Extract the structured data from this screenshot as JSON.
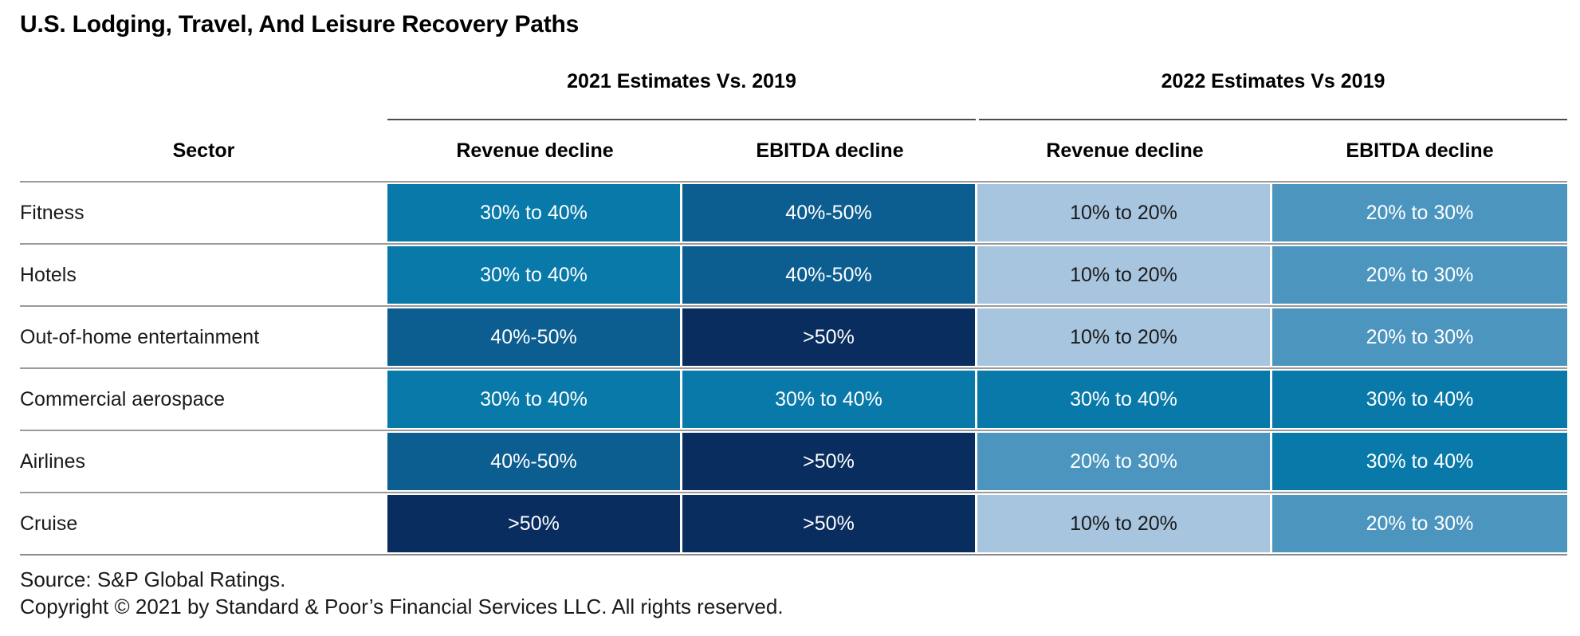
{
  "title": "U.S. Lodging, Travel, And Leisure Recovery Paths",
  "chart_data": {
    "type": "table",
    "title": "U.S. Lodging, Travel, And Leisure Recovery Paths",
    "group_headers": [
      "2021 Estimates Vs. 2019",
      "2022 Estimates Vs 2019"
    ],
    "sector_header": "Sector",
    "column_headers": [
      "Revenue decline",
      "EBITDA decline",
      "Revenue decline",
      "EBITDA decline"
    ],
    "rows": [
      {
        "sector": "Fitness",
        "values": [
          "30% to 40%",
          "40%-50%",
          "10% to 20%",
          "20% to 30%"
        ]
      },
      {
        "sector": "Hotels",
        "values": [
          "30% to 40%",
          "40%-50%",
          "10% to 20%",
          "20% to 30%"
        ]
      },
      {
        "sector": "Out-of-home entertainment",
        "values": [
          "40%-50%",
          ">50%",
          "10% to 20%",
          "20% to 30%"
        ]
      },
      {
        "sector": "Commercial aerospace",
        "values": [
          "30% to 40%",
          "30% to 40%",
          "30% to 40%",
          "30% to 40%"
        ]
      },
      {
        "sector": "Airlines",
        "values": [
          "40%-50%",
          ">50%",
          "20% to 30%",
          "30% to 40%"
        ]
      },
      {
        "sector": "Cruise",
        "values": [
          ">50%",
          ">50%",
          "10% to 20%",
          "20% to 30%"
        ]
      }
    ],
    "color_scale": {
      "10% to 20%": {
        "bg": "#a8c5df",
        "fg": "#1a1a1a"
      },
      "20% to 30%": {
        "bg": "#4c95bf",
        "fg": "#ffffff"
      },
      "30% to 40%": {
        "bg": "#0879a9",
        "fg": "#ffffff"
      },
      "40%-50%": {
        "bg": "#0c5d90",
        "fg": "#ffffff"
      },
      ">50%": {
        "bg": "#092d5e",
        "fg": "#ffffff"
      }
    },
    "legend_position": "none",
    "grid": "row-separators"
  },
  "footer": {
    "source": "Source: S&P Global Ratings.",
    "copyright": "Copyright © 2021 by Standard & Poor’s Financial Services LLC. All rights reserved."
  }
}
